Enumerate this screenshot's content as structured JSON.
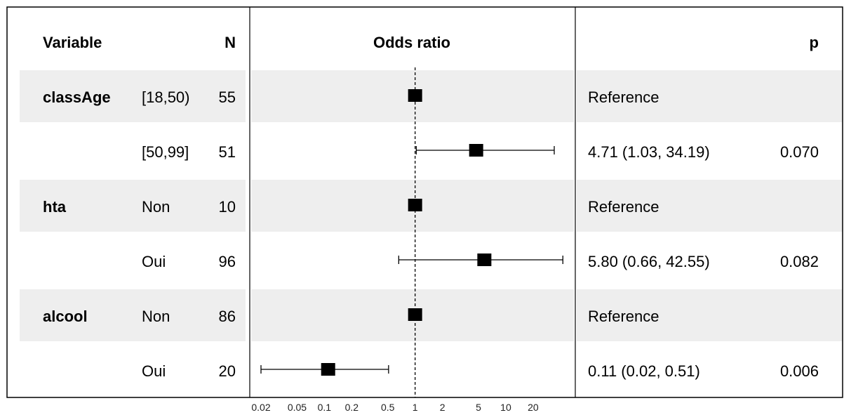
{
  "headers": {
    "variable": "Variable",
    "n": "N",
    "odds_ratio": "Odds ratio",
    "p": "p"
  },
  "colors": {
    "stripe": "#eeeeee",
    "border": "#000000",
    "marker": "#000000",
    "background": "#ffffff"
  },
  "chart_data": {
    "type": "forest",
    "title": "",
    "xlabel": "Odds ratio",
    "xscale": "log",
    "xlim": [
      0.015,
      35
    ],
    "xticks": [
      0.02,
      0.05,
      0.1,
      0.2,
      0.5,
      1,
      2,
      5,
      10,
      20
    ],
    "xtick_labels": [
      "0.02",
      "0.05",
      "0.1",
      "0.2",
      "0.5",
      "1",
      "2",
      "5",
      "10",
      "20"
    ],
    "reference_line": 1,
    "rows": [
      {
        "variable": "classAge",
        "level": "[18,50)",
        "n": "55",
        "or": 1,
        "lower": null,
        "upper": null,
        "estimate_text": "Reference",
        "p": "",
        "shaded": true
      },
      {
        "variable": "",
        "level": "[50,99]",
        "n": "51",
        "or": 4.71,
        "lower": 1.03,
        "upper": 34.19,
        "estimate_text": "4.71 (1.03, 34.19)",
        "p": "0.070",
        "shaded": false
      },
      {
        "variable": "hta",
        "level": "Non",
        "n": "10",
        "or": 1,
        "lower": null,
        "upper": null,
        "estimate_text": "Reference",
        "p": "",
        "shaded": true
      },
      {
        "variable": "",
        "level": "Oui",
        "n": "96",
        "or": 5.8,
        "lower": 0.66,
        "upper": 42.55,
        "estimate_text": "5.80 (0.66, 42.55)",
        "p": "0.082",
        "shaded": false
      },
      {
        "variable": "alcool",
        "level": "Non",
        "n": "86",
        "or": 1,
        "lower": null,
        "upper": null,
        "estimate_text": "Reference",
        "p": "",
        "shaded": true
      },
      {
        "variable": "",
        "level": "Oui",
        "n": "20",
        "or": 0.11,
        "lower": 0.02,
        "upper": 0.51,
        "estimate_text": "0.11 (0.02, 0.51)",
        "p": "0.006",
        "shaded": false
      }
    ]
  }
}
